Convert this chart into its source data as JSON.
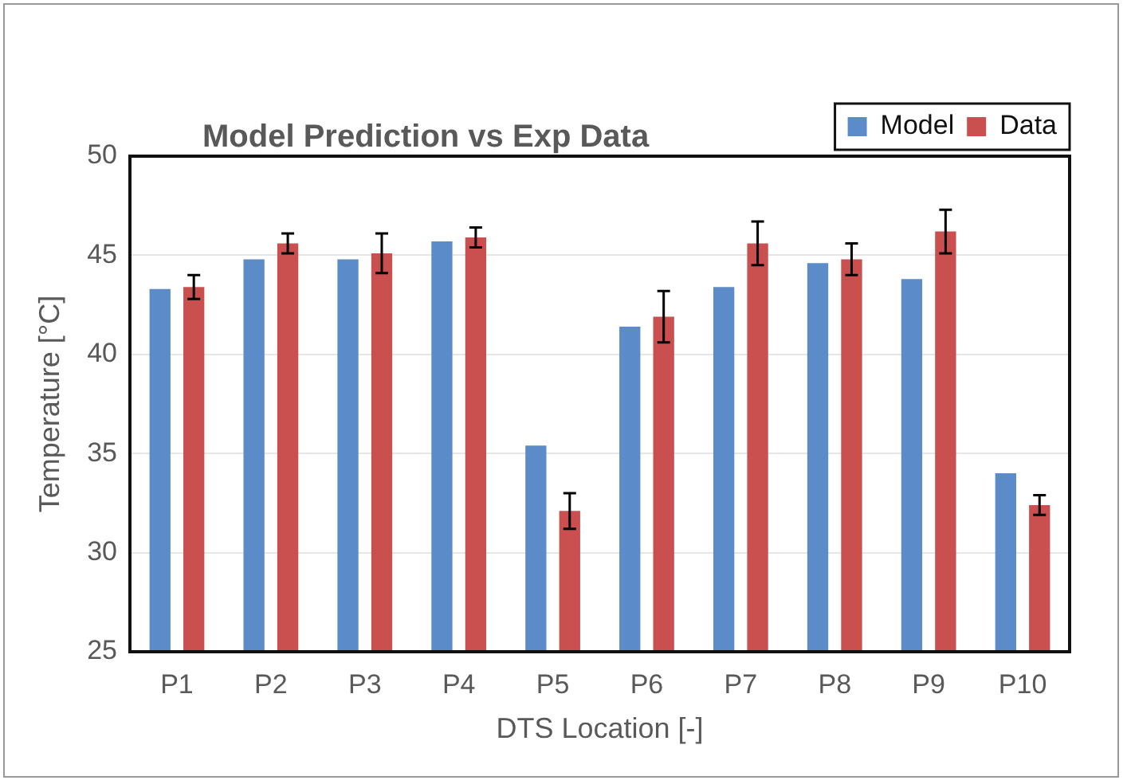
{
  "chart_data": {
    "type": "bar",
    "title": "Model Prediction vs Exp Data",
    "xlabel": "DTS Location [-]",
    "ylabel": "Temperature [°C]",
    "categories": [
      "P1",
      "P2",
      "P3",
      "P4",
      "P5",
      "P6",
      "P7",
      "P8",
      "P9",
      "P10"
    ],
    "series": [
      {
        "name": "Model",
        "color": "#5b8bc9",
        "values": [
          43.3,
          44.8,
          44.8,
          45.7,
          35.4,
          41.4,
          43.4,
          44.6,
          43.8,
          34.0
        ]
      },
      {
        "name": "Data",
        "color": "#c9504f",
        "values": [
          43.4,
          45.6,
          45.1,
          45.9,
          32.1,
          41.9,
          45.6,
          44.8,
          46.2,
          32.4
        ],
        "errors": [
          0.6,
          0.5,
          1.0,
          0.5,
          0.9,
          1.3,
          1.1,
          0.8,
          1.1,
          0.5
        ]
      }
    ],
    "ylim": [
      25,
      50
    ],
    "yticks": [
      25,
      30,
      35,
      40,
      45,
      50
    ],
    "grid": "y",
    "legend": "top right"
  }
}
